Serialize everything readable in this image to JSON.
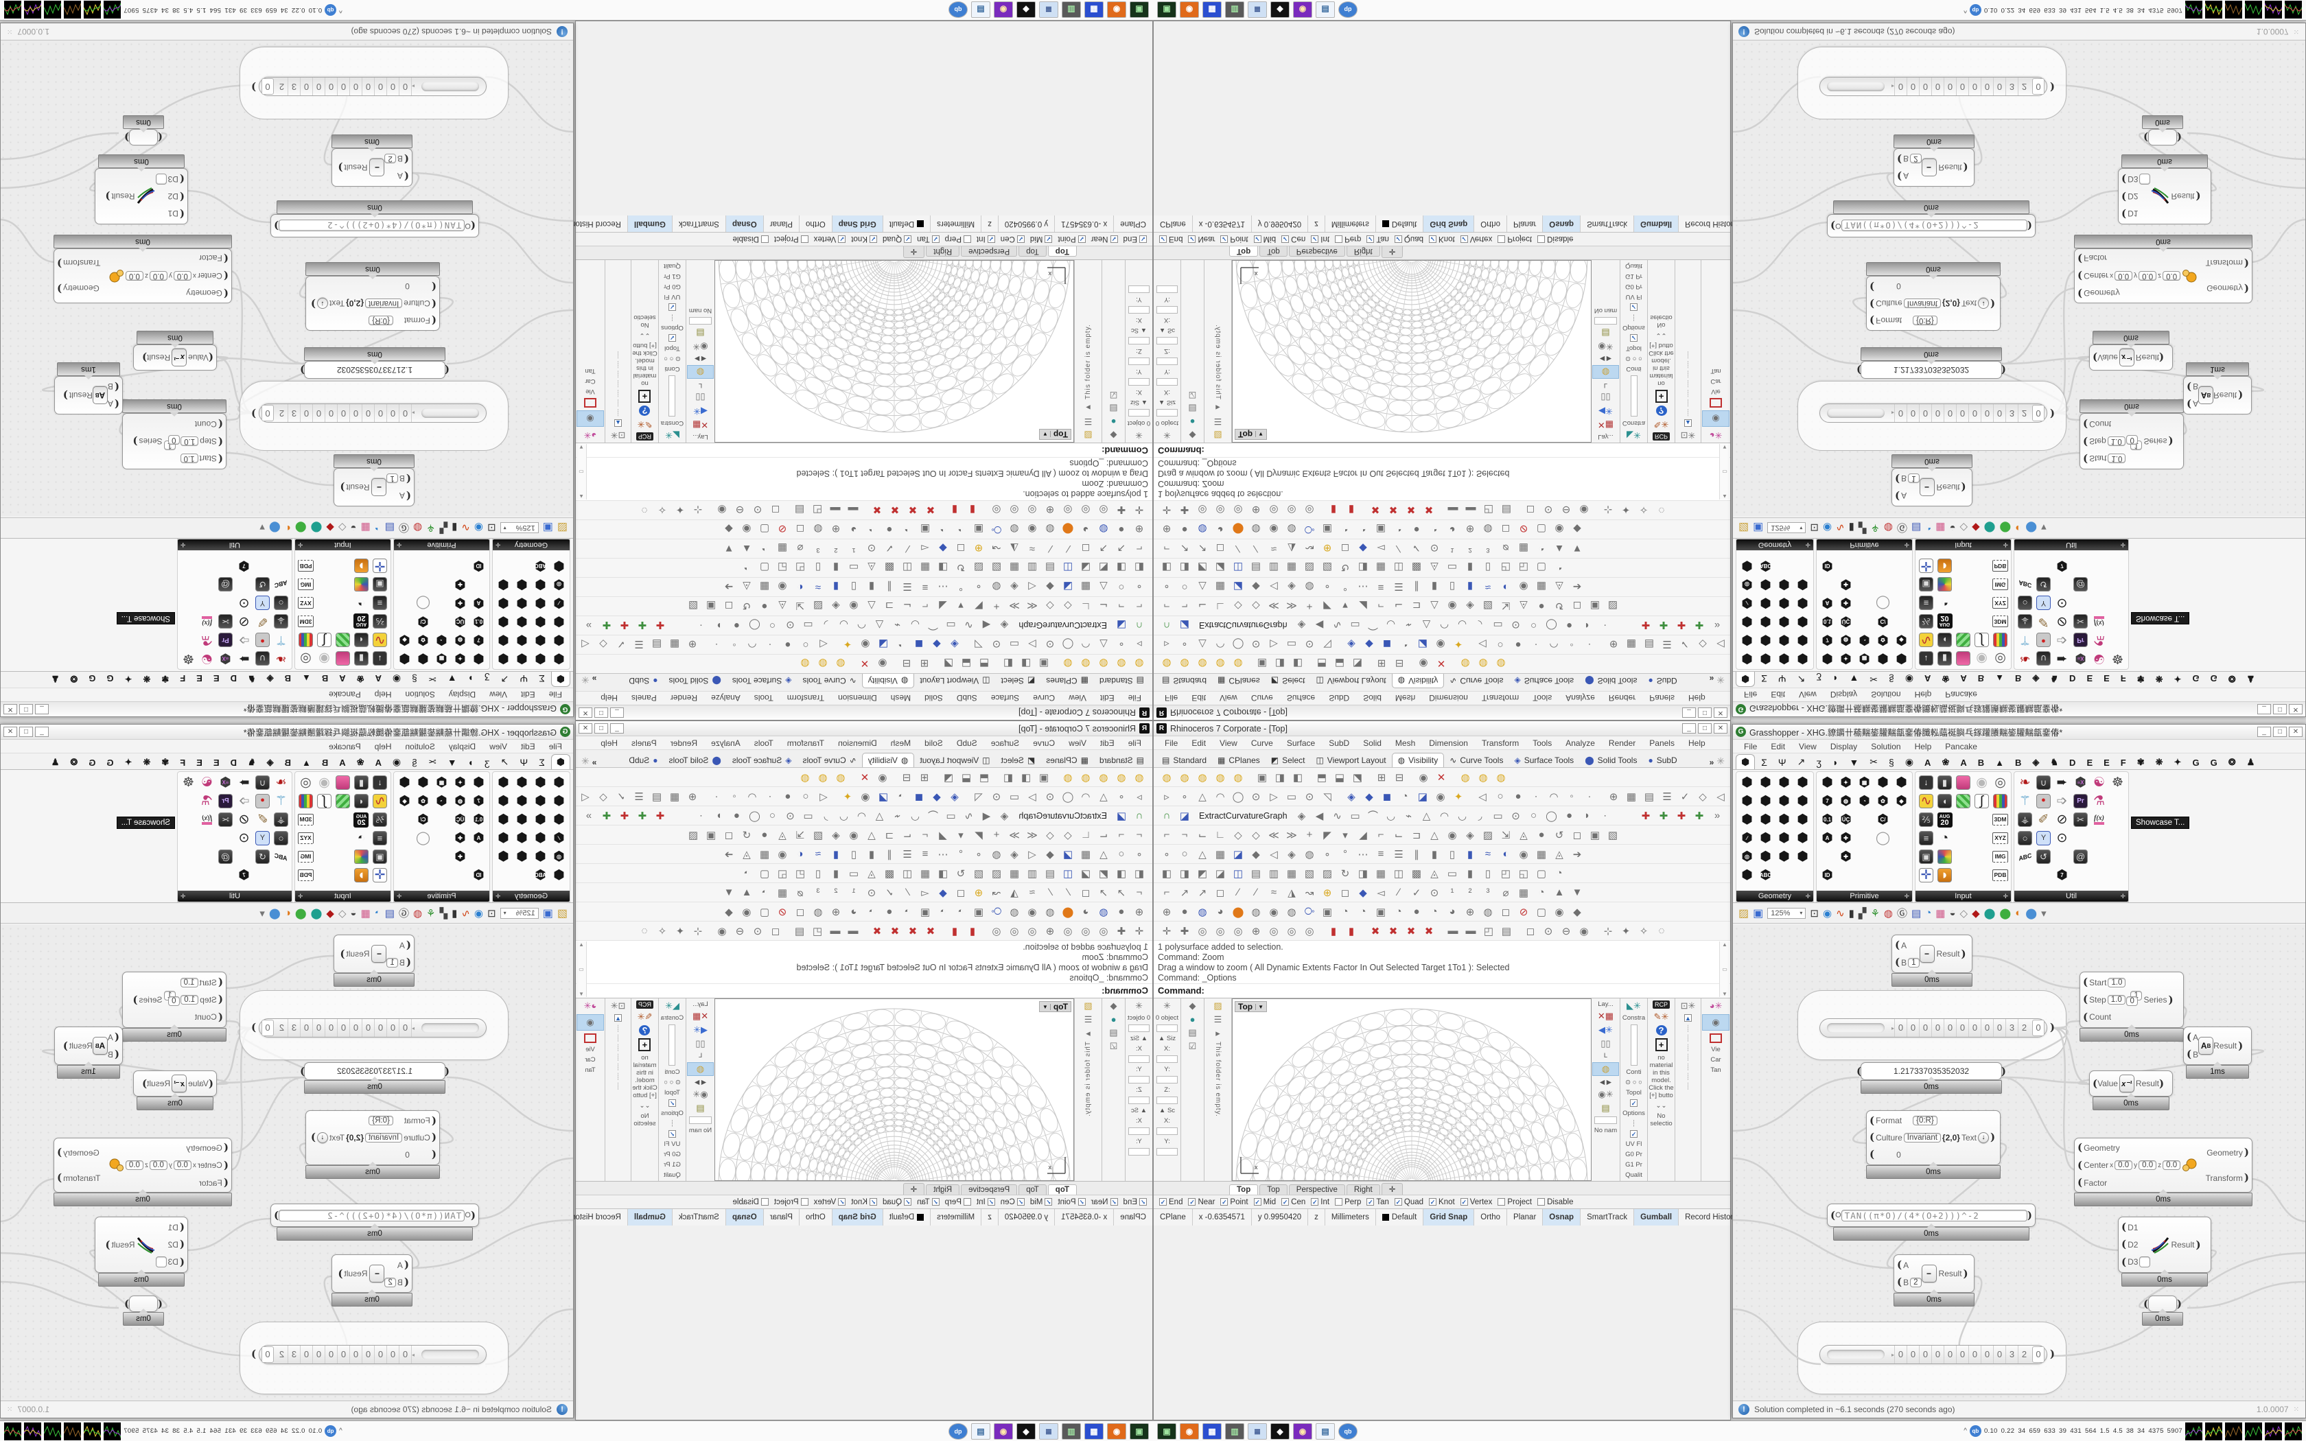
{
  "rhino": {
    "title": "Rhinoceros 7 Corporate - [Top]",
    "app_initial": "R",
    "window_buttons": [
      "_",
      "□",
      "✕"
    ],
    "menus": [
      "File",
      "Edit",
      "View",
      "Curve",
      "Surface",
      "SubD",
      "Solid",
      "Mesh",
      "Dimension",
      "Transform",
      "Tools",
      "Analyze",
      "Render",
      "Panels",
      "Help"
    ],
    "tabs": [
      {
        "label": "Standard",
        "glyph": "▤",
        "active": false
      },
      {
        "label": "CPlanes",
        "glyph": "▦",
        "active": false
      },
      {
        "label": "Select",
        "glyph": "◩",
        "active": false
      },
      {
        "label": "Viewport Layout",
        "glyph": "◫",
        "active": false
      },
      {
        "label": "Visibility",
        "glyph": "◍",
        "active": true
      },
      {
        "label": "Curve Tools",
        "glyph": "∿",
        "active": false
      },
      {
        "label": "Surface Tools",
        "glyph": "◈",
        "active": false
      },
      {
        "label": "Solid Tools",
        "glyph": "⬤",
        "active": false
      },
      {
        "label": "SubD",
        "glyph": "●",
        "active": false
      }
    ],
    "tab_overflow": "»",
    "tab_gear": "✳",
    "icon_rows": [
      {
        "g": "◍◍◍◍◍ ▣◨◧ ⬒⬓⬔ ⊞⊟ ◉✕ ◍◍◍",
        "c": "yyyyy ... ... .. .r yyy"
      },
      {
        "g": "▹∘△◠◯⊙▷▭⊙◹ ◈◆◼◔◪◉✦ ◁○●∙◠◦· ⊕▦▤☰✓◇◁",
        "c": ".......... bbb.b.y ....... ......."
      },
      {
        "g": "∩◪◈◀∿▭⌒◡⌁△◠◡◞▭⊙○◯●◗∙",
        "c": "gb..................",
        "label": "ExtractCurvatureGraph",
        "right": "✚✚✚✚»",
        "rc": "rgrg."
      },
      {
        "g": "⌐¬⌙∟◇◇≪≫+◤▾◢⌐⌙⊐△◉◈▨⇲◬●↺◻▣▧",
        "c": ".........................."
      },
      {
        "g": "∘○△▦◪◆◁◈◍∘°⋯≡☰∥▮▯▮≈◐◉▦◬➔",
        "c": "....b....... ....bbb....r"
      },
      {
        "g": "◧◨◩◪◫▤▥▦▧▨↻◨▦◫▩◬▭▮▯◰◱▢◔",
        "c": "....b..................."
      },
      {
        "g": "⌐↗↗◻∕∕≈◮↝⊕◻◆◅∕✓⊙¹²³⌀▦◔▲▼",
        "c": ".........y.b............"
      },
      {
        "g": "⊕●◍◕⬤◍◉◍⧂▣◔◔▣◔●◔◕⊕◍◻⊘▢◉◆",
        "c": "..b.o...b...........r..."
      },
      {
        "g": "✛✚◎◎◎⊕◎◎◎ ▮▮ ✖✖✖✖ ▬▬◰▤ ◻⊙⊖◉ ⊹✦✧◌",
        "c": "......... rr rrrr .... .... ...."
      }
    ],
    "command_history": [
      "1 polysurface added to selection.",
      "Command: Zoom",
      "Drag a window to zoom ( All  Dynamic  Extents  Factor  In  Out  Selected  Target  1To1 ): Selected",
      "Command: _Options"
    ],
    "command_prompt": "Command:",
    "left_panel": {
      "gear": "✳",
      "objects": "0 object",
      "size_label": "▲ Siz",
      "scale_label": "▲ Sc",
      "x": "X:",
      "y": "Y:",
      "z": "Z:",
      "strip2_icons": [
        "◆",
        "●",
        "▤",
        "☑"
      ],
      "folder_icon": "▨",
      "menu_icon": "☰",
      "arrow_icon": "▸",
      "empty_text": "This folder is empty."
    },
    "right_panels": {
      "layers_label": "Lay...",
      "l_letter": "L",
      "bulb": "◍",
      "arrows": "◀ ▶",
      "no_name": "No nam",
      "constrain_label": "Constra",
      "conti": "Conti",
      "topol": "Topol",
      "options": "Options",
      "uvfl": "UV Fl",
      "g0": "G0 Pr",
      "g1": "G1 Pr",
      "qual": "Qualit",
      "rcp_label": "RCP",
      "help_q": "?",
      "plus_box": "+",
      "no_material": "no material in this model. Click the [+] butto",
      "chevrons": "⌄⌄",
      "no_selection": "No selectio",
      "vie": "Vie",
      "car": "Car",
      "tan": "Tan"
    },
    "viewport": {
      "label": "Top",
      "dropdown": "▼",
      "axis_x": "x",
      "axis_y": "y"
    },
    "viewport_tabs": [
      {
        "label": "Top",
        "active": true
      },
      {
        "label": "Top",
        "active": false
      },
      {
        "label": "Perspective",
        "active": false
      },
      {
        "label": "Right",
        "active": false
      },
      {
        "label": "✛",
        "active": false
      }
    ],
    "osnap": [
      {
        "label": "End",
        "checked": true
      },
      {
        "label": "Near",
        "checked": true
      },
      {
        "label": "Point",
        "checked": true
      },
      {
        "label": "Mid",
        "checked": true
      },
      {
        "label": "Cen",
        "checked": true
      },
      {
        "label": "Int",
        "checked": true
      },
      {
        "label": "Perp",
        "checked": false
      },
      {
        "label": "Tan",
        "checked": true
      },
      {
        "label": "Quad",
        "checked": true
      },
      {
        "label": "Knot",
        "checked": true
      },
      {
        "label": "Vertex",
        "checked": true
      },
      {
        "label": "Project",
        "checked": false
      },
      {
        "label": "Disable",
        "checked": false
      }
    ],
    "status_segments": [
      "CPlane",
      "x -0.6354571",
      "y 0.9950420",
      "z",
      "Millimeters",
      "Default"
    ],
    "status_toggles": [
      {
        "label": "Grid Snap",
        "on": true
      },
      {
        "label": "Ortho",
        "on": false
      },
      {
        "label": "Planar",
        "on": false
      },
      {
        "label": "Osnap",
        "on": true
      },
      {
        "label": "SmartTrack",
        "on": false
      },
      {
        "label": "Gumball",
        "on": true
      },
      {
        "label": "Record History",
        "on": false
      },
      {
        "label": "Filter",
        "on": false
      }
    ]
  },
  "gh": {
    "title": "Grasshopper - XHG.䝤䥎卄䕆䵎䤰䑏䵎㽂䥆偆䑎䡏䕎䘰䑂乓䥂䠰䑆䵎䤰䑏䵎㽂䥆偆*",
    "app_initial": "G",
    "window_buttons": [
      "_",
      "□",
      "✕"
    ],
    "menus": [
      "File",
      "Edit",
      "View",
      "Display",
      "Solution",
      "Help",
      "Pancake"
    ],
    "tab_glyphs": [
      "⬢",
      "Σ",
      "Ψ",
      "↗",
      "ʒ",
      "◗",
      "▼",
      "✂",
      "§",
      "◉"
    ],
    "tab_letters": [
      "A",
      "❀",
      "A",
      "B",
      "▲",
      "B",
      "◈",
      "♞",
      "D",
      "E",
      "E",
      "F",
      "✾",
      "❋",
      "✦",
      "G",
      "G",
      "❂",
      "♟"
    ],
    "panels": [
      {
        "label": "Geometry",
        "cols": 4,
        "cells": [
          "h",
          "h",
          "h",
          "h",
          "h",
          "h",
          "h",
          "h",
          "h",
          "h",
          "h",
          "h",
          "h:∕",
          "h",
          "h",
          "h",
          "h:◎",
          "h",
          "h",
          "h",
          "h",
          "h:ABC",
          "",
          ""
        ]
      },
      {
        "label": "Primitive",
        "cols": 5,
        "cells": [
          "h",
          "h:✦",
          "h:▦",
          "h",
          "h",
          "h:7",
          "h:◍",
          "h:◔",
          "h:✿",
          "h:◆",
          "h:0.1",
          "h:ÜÇ",
          "",
          "h:C/",
          "",
          "h:A",
          "h:✚",
          "",
          "w",
          "",
          "",
          "h:✚",
          "",
          "",
          "",
          "h:ID",
          "",
          "",
          "",
          ""
        ]
      },
      {
        "label": "Input",
        "cols": 5,
        "cells": [
          "sl",
          "kb",
          "pk",
          "orb",
          "tgt",
          "yl",
          "kn",
          "gn",
          "gr",
          "bar",
          "k7",
          "cal",
          "",
          "",
          "tag:3DM",
          "ls",
          "clk",
          "",
          "",
          "tag:XYZ",
          "kq",
          "pal4",
          "",
          "",
          "tag:IMG",
          "gum",
          "pour",
          "",
          "",
          "tag:PDB"
        ]
      },
      {
        "label": "Util",
        "cols": 6,
        "cells": [
          "ch",
          "ku",
          "ar1",
          "egg",
          "ps",
          "plt",
          "tri",
          "rec",
          "ar2",
          "pr",
          "fl",
          "",
          "ktree",
          "pen",
          "qa",
          "kz",
          "fx",
          "",
          "ko",
          "zip",
          "qb2",
          "",
          "",
          "",
          "abc",
          "kt",
          "",
          "kspir",
          "",
          "",
          "",
          "",
          "k7p",
          "",
          "",
          ""
        ]
      }
    ],
    "showcase_tip": "Showcase T...",
    "toolbar_zoom": "125%",
    "statusbar": {
      "icon": "!",
      "text": "Solution completed in ~6.1 seconds (270 seconds ago)",
      "version": "1.0.0007"
    },
    "nodes": {
      "sub1": {
        "a": "A",
        "b": "B",
        "bval": "1",
        "op": "−",
        "out": "Result",
        "time": "0ms"
      },
      "series": {
        "i1": "Start",
        "v1": "1.0",
        "i2": "Step",
        "v2": "1.0",
        "i3": "Count",
        "out": "Series",
        "time": "0ms",
        "ic0": "0",
        "ic1": "1"
      },
      "power": {
        "a": "A",
        "b": "B",
        "iconA": "A",
        "iconB": "B",
        "out": "Result",
        "time": "1ms"
      },
      "panel": {
        "value": "1.217337035352032",
        "time": "0ms"
      },
      "inv": {
        "inp": "Value",
        "icon": "x⁻¹",
        "out": "Result",
        "time": "0ms"
      },
      "format": {
        "f": "Format",
        "fv": "{0:R}",
        "c": "Culture",
        "cv": "Invariant",
        "cv2": "{2,0}",
        "t": "Text",
        "arrow": "↓",
        "third": "0",
        "time": "0ms"
      },
      "scale": {
        "g": "Geometry",
        "c": "Center",
        "cx": "0.0",
        "cy": "0.0",
        "cz": "0.0",
        "f": "Factor",
        "og": "Geometry",
        "ot": "Transform",
        "time": "0ms"
      },
      "expr": {
        "inp": "O",
        "code": "TAN((π*O)/(4*(O+2)))^-2",
        "time": "0ms"
      },
      "sub2": {
        "a": "A",
        "b": "B",
        "bval": "2",
        "op": "−",
        "out": "Result",
        "time": "0ms"
      },
      "weave": {
        "d1": "D1",
        "d2": "D2",
        "d3": "D3",
        "out": "Result",
        "time": "0ms"
      },
      "relay": {
        "time": "0ms"
      },
      "group1_time": "0ms",
      "slider_digits": [
        "0",
        "0",
        "0",
        "0",
        "0",
        "0",
        "0",
        "0",
        "0",
        "3",
        "2",
        "0"
      ],
      "slider_mark": "▸"
    },
    "wires": [
      [
        348,
        45,
        508,
        92
      ],
      [
        466,
        150,
        508,
        140
      ],
      [
        648,
        118,
        656,
        170
      ],
      [
        466,
        150,
        522,
        232
      ],
      [
        754,
        182,
        522,
        232
      ],
      [
        392,
        222,
        516,
        230
      ],
      [
        466,
        150,
        197,
        318
      ],
      [
        392,
        222,
        500,
        332
      ],
      [
        386,
        318,
        237,
        500
      ],
      [
        440,
        428,
        564,
        474
      ],
      [
        352,
        512,
        340,
        622
      ],
      [
        0,
        300,
        184,
        222
      ],
      [
        0,
        340,
        140,
        428
      ],
      [
        0,
        430,
        237,
        500
      ],
      [
        0,
        560,
        128,
        640
      ],
      [
        466,
        150,
        500,
        357
      ],
      [
        754,
        370,
        836,
        432
      ],
      [
        696,
        474,
        600,
        558
      ],
      [
        662,
        558,
        836,
        520
      ],
      [
        466,
        628,
        836,
        478
      ]
    ]
  },
  "taskbar": {
    "tiles": [
      {
        "g": "▣",
        "fg": "#9fe49f",
        "bg": "#16331a"
      },
      {
        "g": "◉",
        "fg": "#ffffff",
        "bg": "#e06a1a"
      },
      {
        "g": "▦",
        "fg": "#ffffff",
        "bg": "#2b4fd0"
      },
      {
        "g": "▥",
        "fg": "#9fe0a0",
        "bg": "#5a5a5a"
      },
      {
        "g": "≣",
        "fg": "#34508c",
        "bg": "#cfe0f4"
      },
      {
        "g": "◆",
        "fg": "#ffffff",
        "bg": "#111111"
      },
      {
        "g": "◉",
        "fg": "#ffe9a8",
        "bg": "#7a2bbd"
      },
      {
        "g": "▤",
        "fg": "#3a6b9f",
        "bg": "#eef4fb"
      },
      {
        "g": "qb",
        "fg": "#ffffff",
        "bg": "#3f7fd2"
      }
    ],
    "tray_chevron": "^",
    "tray_qb": "qb",
    "tray_numbers": [
      "0.10",
      "0.22",
      "34",
      "659",
      "633",
      "39",
      "431",
      "564",
      "1.5",
      "4.5",
      "38",
      "34",
      "4375",
      "5907"
    ],
    "graph_colors": [
      [
        "#3ac43a",
        "#9a3ad6"
      ],
      [
        "#e8d534",
        "#3ac43a"
      ],
      [
        "#9a6a2a"
      ],
      [
        "#3ac43a"
      ],
      [
        "#9a3ad6",
        "#e8d534"
      ],
      [
        "#3ac43a",
        "#e05050"
      ]
    ]
  }
}
